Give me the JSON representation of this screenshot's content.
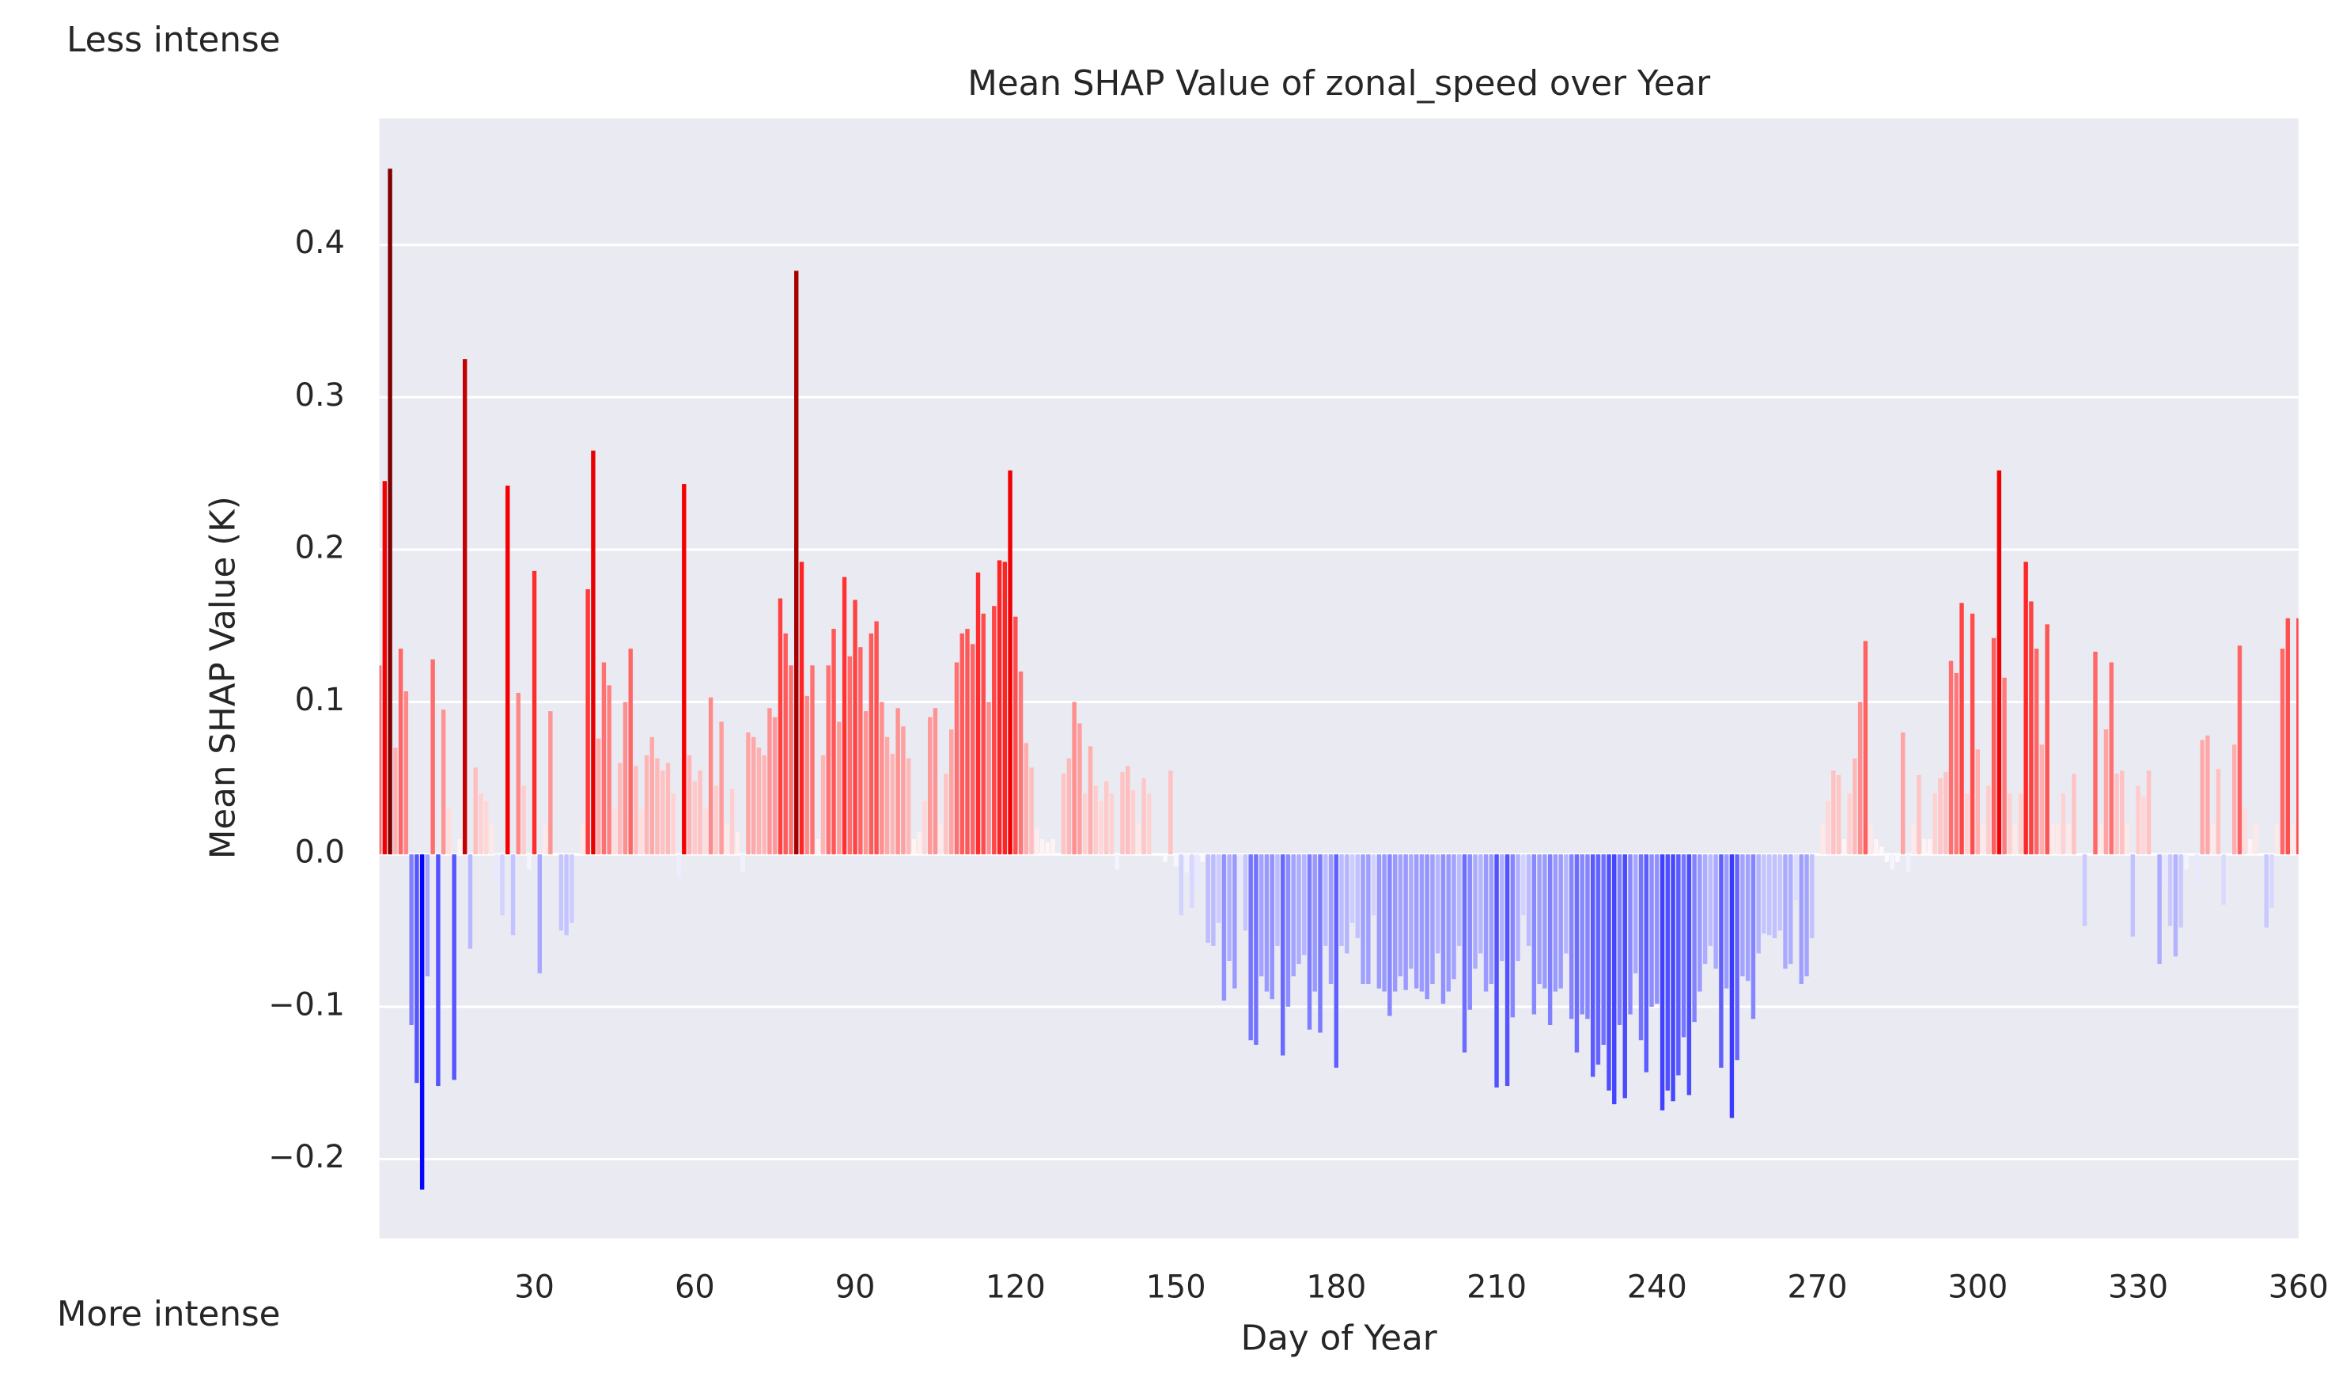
{
  "chart_data": {
    "type": "bar",
    "title": "Mean SHAP Value of zonal_speed over Year",
    "xlabel": "Day of Year",
    "ylabel": "Mean SHAP Value (K)",
    "annotations": [
      "Less intense",
      "More intense"
    ],
    "colormap": "seismic",
    "grid": true,
    "xlim": [
      1,
      360
    ],
    "ylim": [
      -0.252,
      0.483
    ],
    "xticks": [
      30,
      60,
      90,
      120,
      150,
      180,
      210,
      240,
      270,
      300,
      330,
      360
    ],
    "yticks": [
      {
        "value": -0.2,
        "label": "−0.2"
      },
      {
        "value": -0.1,
        "label": "−0.1"
      },
      {
        "value": 0,
        "label": "0.0"
      },
      0.1,
      0.2,
      0.3,
      0.4
    ],
    "x": [
      1,
      2,
      3,
      4,
      5,
      6,
      7,
      8,
      9,
      10,
      11,
      12,
      13,
      14,
      15,
      16,
      17,
      18,
      19,
      20,
      21,
      22,
      23,
      24,
      25,
      26,
      27,
      28,
      29,
      30,
      31,
      32,
      33,
      34,
      35,
      36,
      37,
      38,
      39,
      40,
      41,
      42,
      43,
      44,
      45,
      46,
      47,
      48,
      49,
      50,
      51,
      52,
      53,
      54,
      55,
      56,
      57,
      58,
      59,
      60,
      61,
      62,
      63,
      64,
      65,
      66,
      67,
      68,
      69,
      70,
      71,
      72,
      73,
      74,
      75,
      76,
      77,
      78,
      79,
      80,
      81,
      82,
      83,
      84,
      85,
      86,
      87,
      88,
      89,
      90,
      91,
      92,
      93,
      94,
      95,
      96,
      97,
      98,
      99,
      100,
      101,
      102,
      103,
      104,
      105,
      106,
      107,
      108,
      109,
      110,
      111,
      112,
      113,
      114,
      115,
      116,
      117,
      118,
      119,
      120,
      121,
      122,
      123,
      124,
      125,
      126,
      127,
      128,
      129,
      130,
      131,
      132,
      133,
      134,
      135,
      136,
      137,
      138,
      139,
      140,
      141,
      142,
      143,
      144,
      145,
      146,
      147,
      148,
      149,
      150,
      151,
      152,
      153,
      154,
      155,
      156,
      157,
      158,
      159,
      160,
      161,
      162,
      163,
      164,
      165,
      166,
      167,
      168,
      169,
      170,
      171,
      172,
      173,
      174,
      175,
      176,
      177,
      178,
      179,
      180,
      181,
      182,
      183,
      184,
      185,
      186,
      187,
      188,
      189,
      190,
      191,
      192,
      193,
      194,
      195,
      196,
      197,
      198,
      199,
      200,
      201,
      202,
      203,
      204,
      205,
      206,
      207,
      208,
      209,
      210,
      211,
      212,
      213,
      214,
      215,
      216,
      217,
      218,
      219,
      220,
      221,
      222,
      223,
      224,
      225,
      226,
      227,
      228,
      229,
      230,
      231,
      232,
      233,
      234,
      235,
      236,
      237,
      238,
      239,
      240,
      241,
      242,
      243,
      244,
      245,
      246,
      247,
      248,
      249,
      250,
      251,
      252,
      253,
      254,
      255,
      256,
      257,
      258,
      259,
      260,
      261,
      262,
      263,
      264,
      265,
      266,
      267,
      268,
      269,
      270,
      271,
      272,
      273,
      274,
      275,
      276,
      277,
      278,
      279,
      280,
      281,
      282,
      283,
      284,
      285,
      286,
      287,
      288,
      289,
      290,
      291,
      292,
      293,
      294,
      295,
      296,
      297,
      298,
      299,
      300,
      301,
      302,
      303,
      304,
      305,
      306,
      307,
      308,
      309,
      310,
      311,
      312,
      313,
      314,
      315,
      316,
      317,
      318,
      319,
      320,
      321,
      322,
      323,
      324,
      325,
      326,
      327,
      328,
      329,
      330,
      331,
      332,
      333,
      334,
      335,
      336,
      337,
      338,
      339,
      340,
      341,
      342,
      343,
      344,
      345,
      346,
      347,
      348,
      349,
      350,
      351,
      352,
      353,
      354,
      355,
      356,
      357,
      358,
      359,
      360
    ],
    "values": [
      0.124,
      0.245,
      0.45,
      0.07,
      0.135,
      0.107,
      -0.112,
      -0.15,
      -0.22,
      -0.08,
      0.128,
      -0.152,
      0.095,
      0.03,
      -0.148,
      0.01,
      0.325,
      -0.062,
      0.057,
      0.04,
      0.035,
      0.02,
      -0.02,
      -0.04,
      0.242,
      -0.053,
      0.106,
      0.045,
      -0.01,
      0.186,
      -0.078,
      0.02,
      0.094,
      0,
      -0.05,
      -0.053,
      -0.045,
      0,
      0.02,
      0.174,
      0.265,
      0.076,
      0.126,
      0.111,
      0.03,
      0.06,
      0.1,
      0.135,
      0.058,
      0.03,
      0.065,
      0.077,
      0.063,
      0.055,
      0.06,
      0.04,
      -0.015,
      0.243,
      0.065,
      0.048,
      0.055,
      0.03,
      0.103,
      0.045,
      0.087,
      0.02,
      0.043,
      0.015,
      -0.012,
      0.08,
      0.077,
      0.07,
      0.065,
      0.096,
      0.09,
      0.168,
      0.145,
      0.124,
      0.383,
      0.192,
      0.104,
      0.124,
      0.01,
      0.065,
      0.124,
      0.148,
      0.087,
      0.182,
      0.13,
      0.167,
      0.136,
      0.094,
      0.145,
      0.153,
      0.1,
      0.077,
      0.066,
      0.096,
      0.084,
      0.063,
      0.01,
      0.015,
      0.035,
      0.09,
      0.096,
      0.02,
      0.053,
      0.082,
      0.126,
      0.145,
      0.148,
      0.138,
      0.185,
      0.158,
      0.1,
      0.163,
      0.193,
      0.192,
      0.252,
      0.156,
      0.12,
      0.073,
      0.057,
      0.017,
      0.01,
      0.008,
      0.01,
      0,
      0.053,
      0.063,
      0.1,
      0.086,
      0.04,
      0.071,
      0.045,
      0.035,
      0.048,
      0.04,
      -0.01,
      0.054,
      0.058,
      0.042,
      0.02,
      0.05,
      0.04,
      0,
      0,
      -0.005,
      0.055,
      -0.008,
      -0.04,
      -0.012,
      -0.035,
      -0.02,
      -0.005,
      -0.058,
      -0.06,
      -0.045,
      -0.096,
      -0.07,
      -0.088,
      -0.02,
      -0.05,
      -0.122,
      -0.125,
      -0.08,
      -0.09,
      -0.095,
      -0.06,
      -0.132,
      -0.1,
      -0.08,
      -0.072,
      -0.066,
      -0.115,
      -0.09,
      -0.117,
      -0.06,
      -0.085,
      -0.14,
      -0.06,
      -0.065,
      -0.045,
      -0.055,
      -0.085,
      -0.085,
      -0.04,
      -0.088,
      -0.09,
      -0.106,
      -0.09,
      -0.08,
      -0.089,
      -0.075,
      -0.088,
      -0.09,
      -0.095,
      -0.085,
      -0.065,
      -0.098,
      -0.09,
      -0.082,
      -0.06,
      -0.13,
      -0.102,
      -0.075,
      -0.065,
      -0.09,
      -0.085,
      -0.153,
      -0.07,
      -0.152,
      -0.107,
      -0.07,
      -0.04,
      -0.06,
      -0.105,
      -0.085,
      -0.088,
      -0.112,
      -0.09,
      -0.088,
      -0.065,
      -0.108,
      -0.13,
      -0.105,
      -0.108,
      -0.146,
      -0.138,
      -0.125,
      -0.155,
      -0.164,
      -0.112,
      -0.16,
      -0.105,
      -0.078,
      -0.122,
      -0.143,
      -0.1,
      -0.098,
      -0.168,
      -0.155,
      -0.162,
      -0.145,
      -0.12,
      -0.158,
      -0.11,
      -0.09,
      -0.072,
      -0.06,
      -0.075,
      -0.14,
      -0.088,
      -0.173,
      -0.135,
      -0.08,
      -0.083,
      -0.108,
      -0.065,
      -0.052,
      -0.053,
      -0.055,
      -0.05,
      -0.075,
      -0.072,
      -0.03,
      -0.085,
      -0.08,
      -0.055,
      0,
      0.02,
      0.035,
      0.055,
      0.052,
      0.01,
      0.04,
      0.063,
      0.1,
      0.14,
      0.02,
      0.01,
      0.005,
      -0.005,
      -0.01,
      -0.005,
      0.08,
      -0.012,
      0.02,
      0.052,
      0.01,
      0.01,
      0.04,
      0.05,
      0.054,
      0.127,
      0.119,
      0.165,
      0.04,
      0.158,
      0.069,
      0.02,
      0.045,
      0.142,
      0.252,
      0.116,
      0.04,
      0.02,
      0.04,
      0.192,
      0.166,
      0.135,
      0.072,
      0.151,
      0.02,
      0.02,
      0.04,
      0.02,
      0.053,
      0,
      -0.047,
      0,
      0.133,
      0.02,
      0.082,
      0.126,
      0.053,
      0.055,
      0.02,
      -0.054,
      0.045,
      0.038,
      0.055,
      0,
      -0.072,
      -0.02,
      -0.047,
      -0.067,
      -0.048,
      -0.01,
      0,
      -0.02,
      0.075,
      0.078,
      0.02,
      0.056,
      -0.033,
      0,
      0.072,
      0.137,
      0.03,
      0.01,
      0.02,
      0,
      -0.048,
      -0.035,
      0.02,
      0.135,
      0.155,
      0.02,
      0.155
    ]
  }
}
